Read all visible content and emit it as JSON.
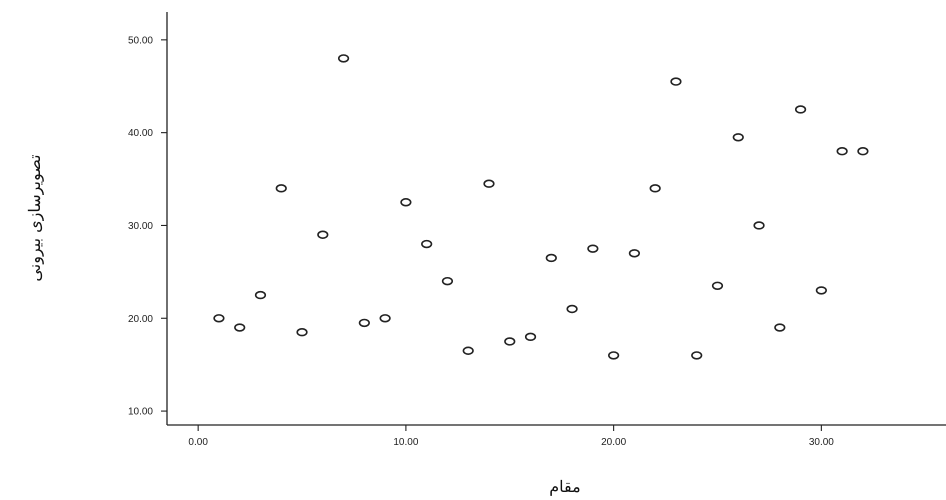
{
  "chart_data": {
    "type": "scatter",
    "title": "",
    "xlabel": "مقام",
    "ylabel": "تصویرسازی بیرونی",
    "xlim": [
      -1.5,
      36
    ],
    "ylim": [
      8.5,
      53
    ],
    "xticks": [
      0,
      10,
      20,
      30
    ],
    "yticks": [
      10,
      20,
      30,
      40,
      50
    ],
    "x_tick_labels": [
      "0.00",
      "10.00",
      "20.00",
      "30.00"
    ],
    "y_tick_labels": [
      "10.00",
      "20.00",
      "30.00",
      "40.00",
      "50.00"
    ],
    "grid": false,
    "marker": "open-circle",
    "points": [
      {
        "x": 1,
        "y": 20
      },
      {
        "x": 2,
        "y": 19
      },
      {
        "x": 3,
        "y": 22.5
      },
      {
        "x": 4,
        "y": 34
      },
      {
        "x": 5,
        "y": 18.5
      },
      {
        "x": 6,
        "y": 29
      },
      {
        "x": 7,
        "y": 48
      },
      {
        "x": 8,
        "y": 19.5
      },
      {
        "x": 9,
        "y": 20
      },
      {
        "x": 10,
        "y": 32.5
      },
      {
        "x": 11,
        "y": 28
      },
      {
        "x": 12,
        "y": 24
      },
      {
        "x": 13,
        "y": 16.5
      },
      {
        "x": 14,
        "y": 34.5
      },
      {
        "x": 15,
        "y": 17.5
      },
      {
        "x": 16,
        "y": 18
      },
      {
        "x": 17,
        "y": 26.5
      },
      {
        "x": 18,
        "y": 21
      },
      {
        "x": 19,
        "y": 27.5
      },
      {
        "x": 20,
        "y": 16
      },
      {
        "x": 21,
        "y": 27
      },
      {
        "x": 22,
        "y": 34
      },
      {
        "x": 23,
        "y": 45.5
      },
      {
        "x": 24,
        "y": 16
      },
      {
        "x": 25,
        "y": 23.5
      },
      {
        "x": 26,
        "y": 39.5
      },
      {
        "x": 27,
        "y": 30
      },
      {
        "x": 28,
        "y": 19
      },
      {
        "x": 29,
        "y": 42.5
      },
      {
        "x": 30,
        "y": 23
      },
      {
        "x": 31,
        "y": 38
      },
      {
        "x": 32,
        "y": 38
      }
    ]
  }
}
